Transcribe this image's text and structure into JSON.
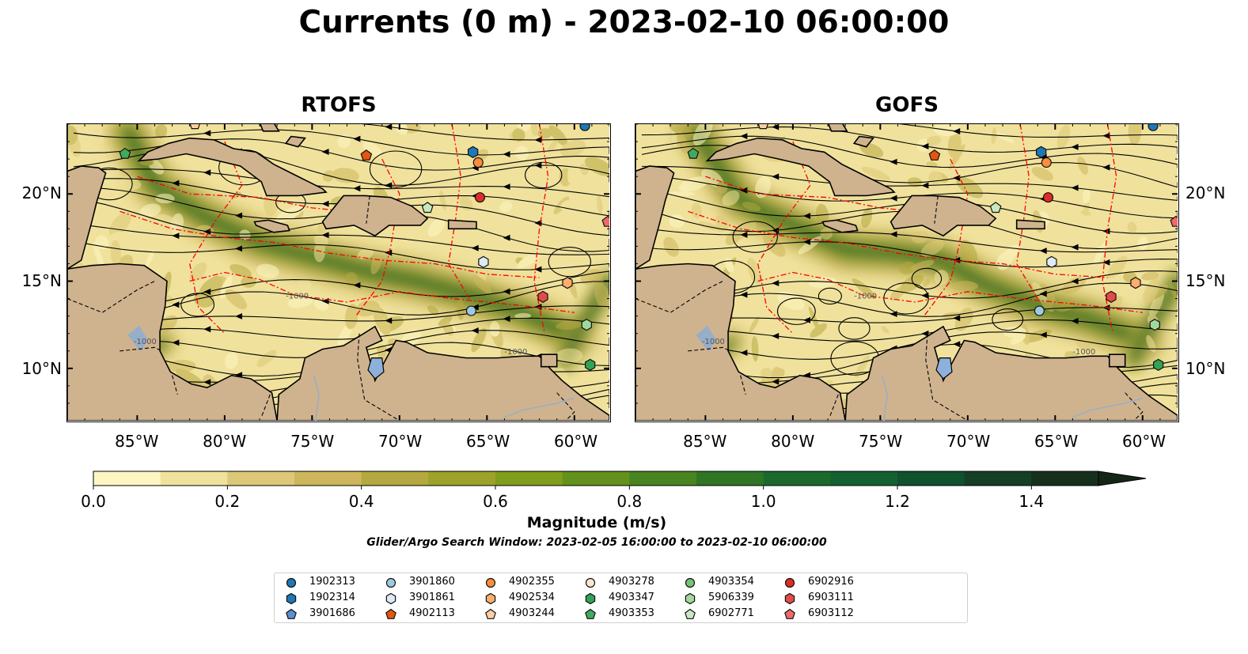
{
  "title": "Currents (0 m) - 2023-02-10 06:00:00",
  "panels": [
    {
      "title": "RTOFS"
    },
    {
      "title": "GOFS"
    }
  ],
  "map": {
    "lon_range": [
      -89,
      -58
    ],
    "lat_range": [
      7,
      24
    ],
    "lon_ticks": [
      "85°W",
      "80°W",
      "75°W",
      "70°W",
      "65°W",
      "60°W"
    ],
    "lon_tick_values": [
      -85,
      -80,
      -75,
      -70,
      -65,
      -60
    ],
    "lat_ticks": [
      "20°N",
      "15°N",
      "10°N"
    ],
    "lat_tick_values": [
      20,
      15,
      10
    ],
    "land_color": "#cfb38e",
    "eez_color": "#ff0000",
    "bathymetry_label": "-1000"
  },
  "colorbar": {
    "label": "Magnitude (m/s)",
    "min": 0.0,
    "max": 1.5,
    "step": 0.1,
    "extend": "max",
    "tick_labels": [
      "0.0",
      "0.2",
      "0.4",
      "0.6",
      "0.8",
      "1.0",
      "1.2",
      "1.4"
    ],
    "tick_values": [
      0.0,
      0.2,
      0.4,
      0.6,
      0.8,
      1.0,
      1.2,
      1.4
    ],
    "colors": [
      "#fdf6c3",
      "#f0e29c",
      "#dcc877",
      "#cdb65b",
      "#b4a840",
      "#9ca22a",
      "#809d1c",
      "#63911c",
      "#48841f",
      "#2f7524",
      "#1b6a2c",
      "#136131",
      "#10512e",
      "#153f26",
      "#17301e",
      "#162616"
    ]
  },
  "search_window": "Glider/Argo Search Window: 2023-02-05 16:00:00 to 2023-02-10 06:00:00",
  "legend": {
    "items": [
      {
        "label": "1902313",
        "marker": "circle",
        "color": "#1f77b4"
      },
      {
        "label": "1902314",
        "marker": "hexagon",
        "color": "#1f77b4"
      },
      {
        "label": "3901686",
        "marker": "pentagon",
        "color": "#5a8fd0"
      },
      {
        "label": "3901860",
        "marker": "circle",
        "color": "#9ecae1"
      },
      {
        "label": "3901861",
        "marker": "hexagon",
        "color": "#deebf7"
      },
      {
        "label": "4902113",
        "marker": "pentagon",
        "color": "#e6550d"
      },
      {
        "label": "4902355",
        "marker": "circle",
        "color": "#fd8d3c"
      },
      {
        "label": "4902534",
        "marker": "hexagon",
        "color": "#fdae6b"
      },
      {
        "label": "4903244",
        "marker": "pentagon",
        "color": "#fdd0a2"
      },
      {
        "label": "4903278",
        "marker": "circle",
        "color": "#fee6ce"
      },
      {
        "label": "4903347",
        "marker": "hexagon",
        "color": "#31a354"
      },
      {
        "label": "4903353",
        "marker": "pentagon",
        "color": "#41ab5d"
      },
      {
        "label": "4903354",
        "marker": "circle",
        "color": "#74c476"
      },
      {
        "label": "5906339",
        "marker": "hexagon",
        "color": "#a1d99b"
      },
      {
        "label": "6902771",
        "marker": "pentagon",
        "color": "#c7e9c0"
      },
      {
        "label": "6902916",
        "marker": "circle",
        "color": "#de2d26"
      },
      {
        "label": "6903111",
        "marker": "hexagon",
        "color": "#e34a4a"
      },
      {
        "label": "6903112",
        "marker": "pentagon",
        "color": "#f06868"
      }
    ]
  },
  "floats": [
    {
      "id": "4903353",
      "lon": -85.7,
      "lat": 22.3
    },
    {
      "id": "4903244",
      "lon": -81.7,
      "lat": 24.0
    },
    {
      "id": "4902113",
      "lon": -71.9,
      "lat": 22.2
    },
    {
      "id": "1902314",
      "lon": -65.8,
      "lat": 22.4
    },
    {
      "id": "4902355",
      "lon": -65.5,
      "lat": 21.8
    },
    {
      "id": "1902313",
      "lon": -59.4,
      "lat": 23.9
    },
    {
      "id": "6902916",
      "lon": -65.4,
      "lat": 19.8
    },
    {
      "id": "6902771",
      "lon": -68.4,
      "lat": 19.2
    },
    {
      "id": "6903112",
      "lon": -58.1,
      "lat": 18.4
    },
    {
      "id": "3901861",
      "lon": -65.2,
      "lat": 16.1
    },
    {
      "id": "4902534",
      "lon": -60.4,
      "lat": 14.9
    },
    {
      "id": "6903111",
      "lon": -61.8,
      "lat": 14.1
    },
    {
      "id": "3901860",
      "lon": -65.9,
      "lat": 13.3
    },
    {
      "id": "5906339",
      "lon": -59.3,
      "lat": 12.5
    },
    {
      "id": "4903347",
      "lon": -59.1,
      "lat": 10.2
    }
  ]
}
